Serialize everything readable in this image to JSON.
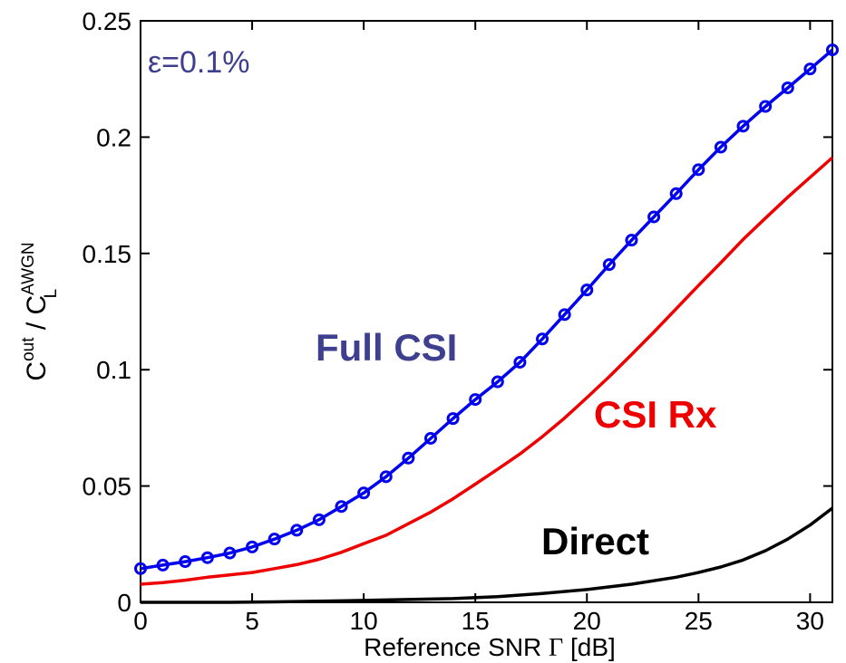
{
  "chart_data": {
    "type": "line",
    "xlabel_prefix": "Reference SNR ",
    "xlabel_symbol": "Γ",
    "xlabel_suffix": " [dB]",
    "ylabel": {
      "base1": "C",
      "sup1": "out",
      "slash": " / ",
      "base2": "C",
      "sup2": "AWGN",
      "sub2": "L"
    },
    "xlim": [
      0,
      31
    ],
    "ylim": [
      0,
      0.25
    ],
    "x_ticks": [
      0,
      5,
      10,
      15,
      20,
      25,
      30
    ],
    "x_tick_labels": [
      "0",
      "5",
      "10",
      "15",
      "20",
      "25",
      "30"
    ],
    "y_ticks": [
      0,
      0.05,
      0.1,
      0.15,
      0.2,
      0.25
    ],
    "y_tick_labels": [
      "0",
      "0.05",
      "0.1",
      "0.15",
      "0.2",
      "0.25"
    ],
    "grid": false,
    "annotation": "ε=0.1%",
    "series": [
      {
        "name": "Full CSI",
        "color": "#0000ee",
        "label_color": "#3f3f8f",
        "marker": "circle",
        "x": [
          0,
          1,
          2,
          3,
          4,
          5,
          6,
          7,
          8,
          9,
          10,
          11,
          12,
          13,
          14,
          15,
          16,
          17,
          18,
          19,
          20,
          21,
          22,
          23,
          24,
          25,
          26,
          27,
          28,
          29,
          30,
          31
        ],
        "y": [
          0.0145,
          0.016,
          0.0175,
          0.0192,
          0.0212,
          0.0238,
          0.0272,
          0.031,
          0.0355,
          0.0412,
          0.047,
          0.054,
          0.062,
          0.0705,
          0.079,
          0.0872,
          0.0948,
          0.1032,
          0.1132,
          0.1237,
          0.1343,
          0.1452,
          0.1557,
          0.1657,
          0.1757,
          0.186,
          0.1957,
          0.2047,
          0.2132,
          0.2212,
          0.2293,
          0.2375
        ]
      },
      {
        "name": "CSI Rx",
        "color": "#ee0000",
        "label_color": "#ee0000",
        "marker": "none",
        "x": [
          0,
          1,
          2,
          3,
          4,
          5,
          6,
          7,
          8,
          9,
          10,
          11,
          12,
          13,
          14,
          15,
          16,
          17,
          18,
          19,
          20,
          21,
          22,
          23,
          24,
          25,
          26,
          27,
          28,
          29,
          30,
          31
        ],
        "y": [
          0.0078,
          0.0085,
          0.0095,
          0.0108,
          0.0118,
          0.0128,
          0.0145,
          0.0162,
          0.0185,
          0.0215,
          0.0252,
          0.0288,
          0.0338,
          0.0388,
          0.0445,
          0.0508,
          0.0572,
          0.0638,
          0.0712,
          0.0792,
          0.088,
          0.097,
          0.1065,
          0.1162,
          0.1262,
          0.1362,
          0.146,
          0.156,
          0.1652,
          0.1742,
          0.1827,
          0.1912
        ]
      },
      {
        "name": "Direct",
        "color": "#000000",
        "label_color": "#000000",
        "marker": "none",
        "x": [
          0,
          2,
          4,
          6,
          8,
          10,
          12,
          14,
          16,
          18,
          20,
          22,
          24,
          25,
          26,
          27,
          28,
          29,
          30,
          31
        ],
        "y": [
          0,
          0,
          0,
          0.0002,
          0.0005,
          0.0008,
          0.0012,
          0.0016,
          0.0024,
          0.0038,
          0.0055,
          0.0078,
          0.0108,
          0.0128,
          0.0152,
          0.0182,
          0.0222,
          0.0272,
          0.0332,
          0.0405
        ]
      }
    ]
  }
}
